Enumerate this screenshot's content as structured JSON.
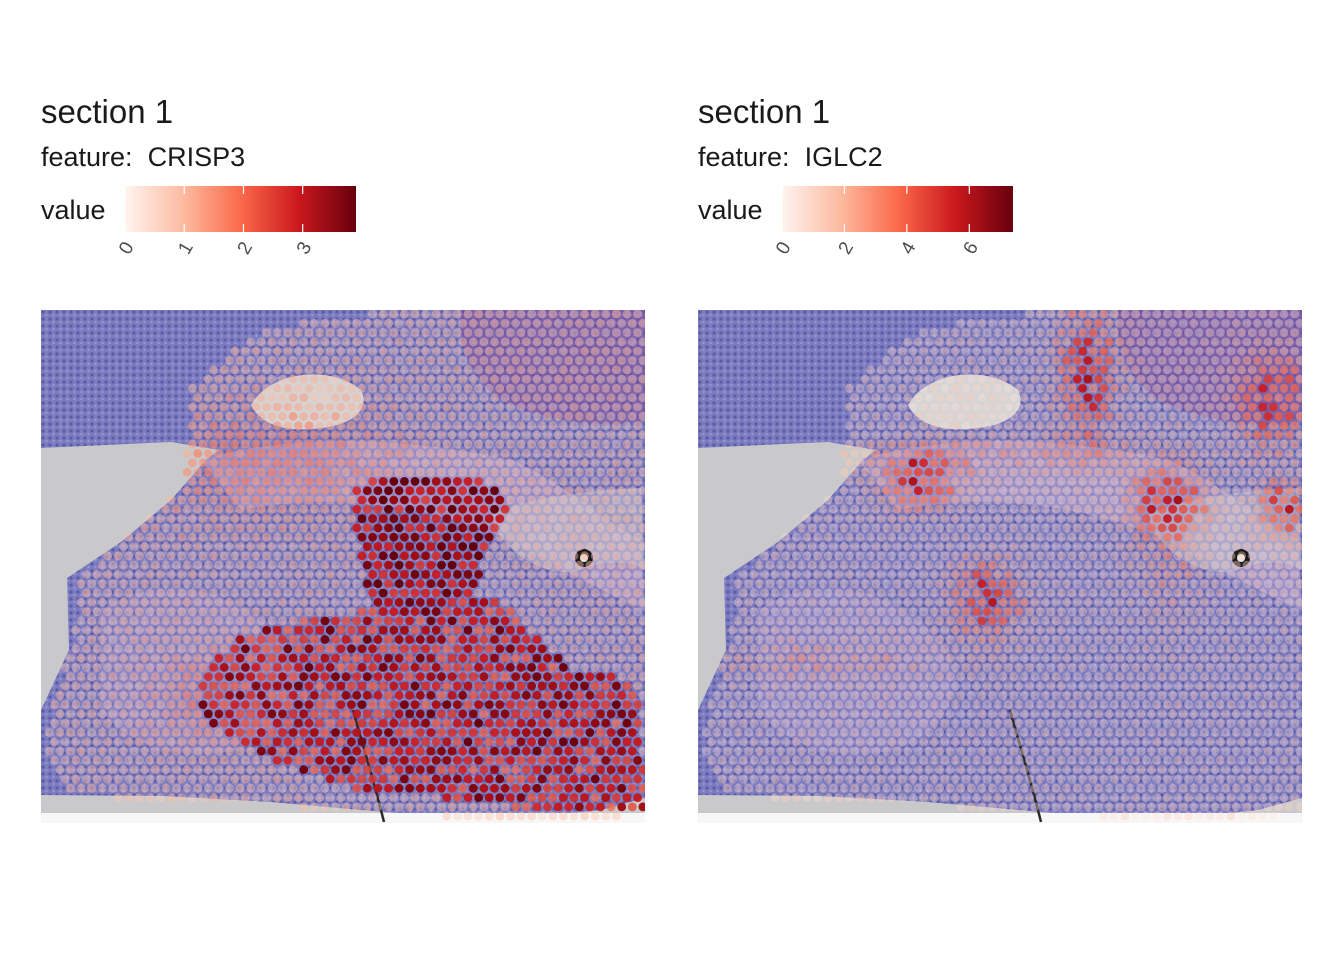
{
  "chart_data": [
    {
      "type": "scatter",
      "title": "section 1",
      "subtitle_prefix": "feature:",
      "feature": "CRISP3",
      "legend_title": "value",
      "colorscale": [
        "#fff5f0",
        "#fcbba1",
        "#fb6a4a",
        "#cb181d",
        "#67000d"
      ],
      "value_range": [
        0,
        3.9
      ],
      "ticks": [
        {
          "value": 0,
          "label": "0"
        },
        {
          "value": 1,
          "label": "1"
        },
        {
          "value": 2,
          "label": "2"
        },
        {
          "value": 3,
          "label": "3"
        }
      ],
      "grid": false,
      "legend_position": "top",
      "pattern": "crisp3"
    },
    {
      "type": "scatter",
      "title": "section 1",
      "subtitle_prefix": "feature:",
      "feature": "IGLC2",
      "legend_title": "value",
      "colorscale": [
        "#fff5f0",
        "#fcbba1",
        "#fb6a4a",
        "#cb181d",
        "#67000d"
      ],
      "value_range": [
        0,
        7.4
      ],
      "ticks": [
        {
          "value": 0,
          "label": "0"
        },
        {
          "value": 2,
          "label": "2"
        },
        {
          "value": 4,
          "label": "4"
        },
        {
          "value": 6,
          "label": "6"
        }
      ],
      "grid": false,
      "legend_position": "top",
      "pattern": "iglc2"
    }
  ]
}
